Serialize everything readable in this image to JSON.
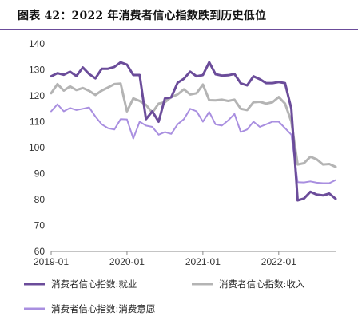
{
  "title": "图表 42：2022 年消费者信心指数跌到历史低位",
  "chart_data": {
    "type": "line",
    "xlabel": "",
    "ylabel": "",
    "ylim": [
      60,
      140
    ],
    "yticks": [
      60,
      70,
      80,
      90,
      100,
      110,
      120,
      130,
      140
    ],
    "xticks": [
      "2019-01",
      "2020-01",
      "2021-01",
      "2022-01"
    ],
    "x": [
      "2019-01",
      "2019-02",
      "2019-03",
      "2019-04",
      "2019-05",
      "2019-06",
      "2019-07",
      "2019-08",
      "2019-09",
      "2019-10",
      "2019-11",
      "2019-12",
      "2020-01",
      "2020-02",
      "2020-03",
      "2020-04",
      "2020-05",
      "2020-06",
      "2020-07",
      "2020-08",
      "2020-09",
      "2020-10",
      "2020-11",
      "2020-12",
      "2021-01",
      "2021-02",
      "2021-03",
      "2021-04",
      "2021-05",
      "2021-06",
      "2021-07",
      "2021-08",
      "2021-09",
      "2021-10",
      "2021-11",
      "2021-12",
      "2022-01",
      "2022-02",
      "2022-03",
      "2022-04",
      "2022-05",
      "2022-06",
      "2022-07",
      "2022-08",
      "2022-09",
      "2022-10"
    ],
    "grid": false,
    "legend_position": "bottom",
    "series": [
      {
        "name": "消费者信心指数:就业",
        "color": "#6b4c9a",
        "width": 3,
        "values": [
          127.5,
          128.7,
          128.1,
          129.3,
          127.6,
          130.9,
          128.4,
          126.7,
          130.4,
          130.4,
          131.1,
          132.9,
          132.0,
          128.0,
          128.0,
          111.0,
          114.0,
          110.0,
          119.0,
          119.4,
          125.0,
          126.6,
          129.3,
          127.5,
          128.0,
          132.9,
          128.3,
          127.8,
          127.9,
          128.4,
          124.8,
          124.0,
          127.5,
          126.4,
          124.9,
          124.9,
          125.3,
          124.9,
          115.0,
          79.7,
          80.4,
          83.0,
          81.9,
          81.6,
          82.3,
          80.3
        ]
      },
      {
        "name": "消费者信心指数:收入",
        "color": "#b4b4b4",
        "width": 3,
        "values": [
          121.0,
          124.5,
          122.0,
          123.6,
          122.2,
          123.0,
          121.9,
          120.3,
          122.0,
          123.2,
          124.5,
          124.7,
          114.0,
          119.0,
          118.0,
          116.5,
          113.5,
          117.0,
          117.5,
          119.5,
          120.5,
          122.5,
          120.5,
          121.0,
          124.3,
          118.3,
          118.2,
          118.5,
          118.0,
          118.5,
          115.0,
          114.5,
          117.5,
          117.7,
          117.0,
          117.5,
          119.5,
          117.0,
          110.0,
          93.5,
          94.0,
          96.5,
          95.5,
          93.5,
          93.7,
          92.6
        ]
      },
      {
        "name": "消费者信心指数:消费意愿",
        "color": "#a98fe0",
        "width": 2,
        "values": [
          114.0,
          116.7,
          114.0,
          115.3,
          114.5,
          115.0,
          115.5,
          112.0,
          109.0,
          107.5,
          107.0,
          111.0,
          110.9,
          103.5,
          110.0,
          108.5,
          108.0,
          105.0,
          106.0,
          105.3,
          109.0,
          111.0,
          115.0,
          114.0,
          110.0,
          113.8,
          109.0,
          108.5,
          110.5,
          113.0,
          106.0,
          107.0,
          110.0,
          108.0,
          109.0,
          110.0,
          110.0,
          107.5,
          105.0,
          86.7,
          86.6,
          87.0,
          86.5,
          86.3,
          86.3,
          87.5
        ]
      }
    ]
  }
}
